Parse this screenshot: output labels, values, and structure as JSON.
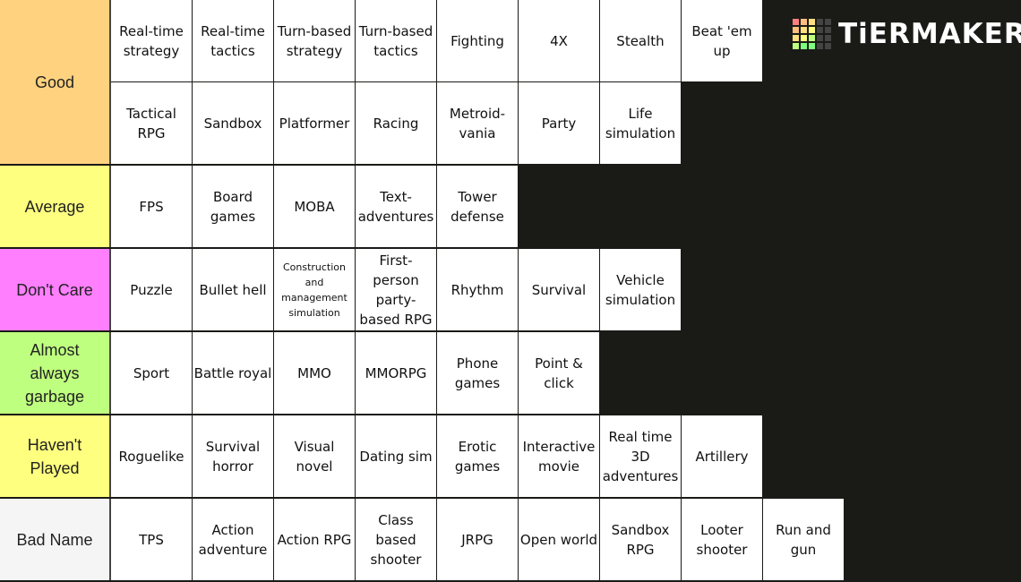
{
  "logo": "TiERMAKER",
  "tiers": [
    {
      "label": "Good",
      "color": "#ffd27f",
      "items": [
        "Real-time strategy",
        "Real-time tactics",
        "Turn-based strategy",
        "Turn-based tactics",
        "Fighting",
        "4X",
        "Stealth",
        "Beat 'em up",
        "Tactical RPG",
        "Sandbox",
        "Platformer",
        "Racing",
        "Metroid-vania",
        "Party",
        "Life simulation"
      ]
    },
    {
      "label": "Average",
      "color": "#ffff7f",
      "items": [
        "FPS",
        "Board games",
        "MOBA",
        "Text-adventures",
        "Tower defense"
      ]
    },
    {
      "label": "Don't Care",
      "color": "#ff7fff",
      "items": [
        "Puzzle",
        "Bullet hell",
        "Construction and management simulation",
        "First-person party-based RPG",
        "Rhythm",
        "Survival",
        "Vehicle simulation"
      ]
    },
    {
      "label": "Almost always garbage",
      "color": "#bfff7f",
      "items": [
        "Sport",
        "Battle royal",
        "MMO",
        "MMORPG",
        "Phone games",
        "Point & click"
      ]
    },
    {
      "label": "Haven't Played",
      "color": "#ffff7f",
      "items": [
        "Roguelike",
        "Survival horror",
        "Visual novel",
        "Dating sim",
        "Erotic games",
        "Interactive movie",
        "Real time 3D adventures",
        "Artillery"
      ]
    },
    {
      "label": "Bad Name",
      "color": "#f5f5f5",
      "items": [
        "TPS",
        "Action adventure",
        "Action RPG",
        "Class based shooter",
        "JRPG",
        "Open world",
        "Sandbox RPG",
        "Looter shooter",
        "Run and gun"
      ]
    }
  ]
}
